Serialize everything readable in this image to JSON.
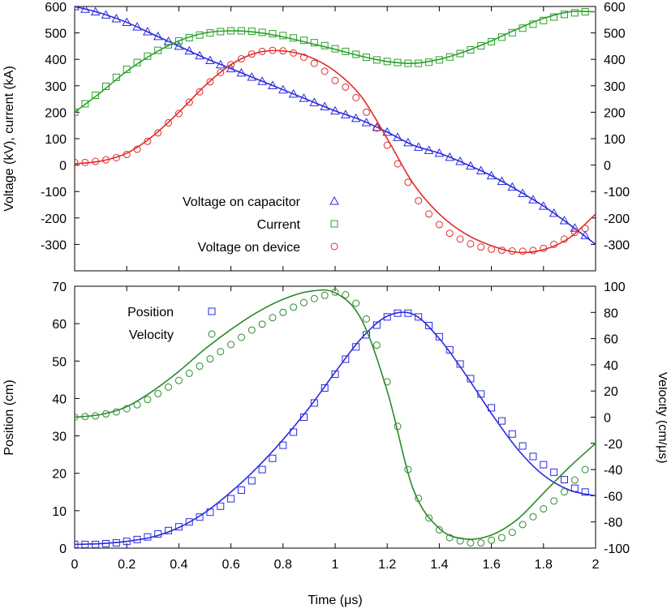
{
  "chart_data": [
    {
      "type": "line",
      "xlabel": "",
      "ylabel": "Voltage (kV), current (kA)",
      "xlim": [
        0,
        2
      ],
      "ylim": [
        -400,
        600
      ],
      "y2lim": [
        -400,
        600
      ],
      "yticks": [
        600,
        500,
        400,
        300,
        200,
        100,
        0,
        -100,
        -200,
        -300
      ],
      "y2ticks": [
        600,
        500,
        400,
        300,
        200,
        100,
        0,
        -100,
        -200,
        -300
      ],
      "xticks": [
        0,
        0.2,
        0.4,
        0.6,
        0.8,
        1,
        1.2,
        1.4,
        1.6,
        1.8,
        2
      ],
      "grid": false,
      "legend_position": "lower-left",
      "series": [
        {
          "name": "Voltage on capacitor",
          "marker": "triangle",
          "color": "#2a2adf",
          "line_x": [
            0,
            0.1,
            0.2,
            0.3,
            0.4,
            0.5,
            0.6,
            0.7,
            0.8,
            0.9,
            1.0,
            1.1,
            1.2,
            1.3,
            1.4,
            1.5,
            1.6,
            1.7,
            1.8,
            1.9,
            2.0
          ],
          "line_y": [
            600,
            575,
            540,
            495,
            450,
            405,
            365,
            325,
            285,
            245,
            205,
            170,
            125,
            75,
            45,
            5,
            -40,
            -95,
            -155,
            -225,
            -300
          ],
          "points_x": [
            0,
            0.04,
            0.08,
            0.12,
            0.16,
            0.2,
            0.24,
            0.28,
            0.32,
            0.36,
            0.4,
            0.44,
            0.48,
            0.52,
            0.56,
            0.6,
            0.64,
            0.68,
            0.72,
            0.76,
            0.8,
            0.84,
            0.88,
            0.92,
            0.96,
            1.0,
            1.04,
            1.08,
            1.12,
            1.16,
            1.2,
            1.24,
            1.28,
            1.32,
            1.36,
            1.4,
            1.44,
            1.48,
            1.52,
            1.56,
            1.6,
            1.64,
            1.68,
            1.72,
            1.76,
            1.8,
            1.84,
            1.88,
            1.92,
            1.96
          ],
          "points_y": [
            600,
            590,
            580,
            568,
            554,
            540,
            523,
            505,
            487,
            468,
            450,
            432,
            414,
            396,
            380,
            365,
            349,
            333,
            317,
            301,
            285,
            269,
            253,
            237,
            221,
            205,
            191,
            177,
            161,
            143,
            125,
            105,
            85,
            68,
            56,
            45,
            30,
            14,
            -3,
            -21,
            -40,
            -61,
            -83,
            -107,
            -131,
            -155,
            -182,
            -210,
            -238,
            -266
          ]
        },
        {
          "name": "Current",
          "marker": "square",
          "color": "#2aa02a",
          "line_x": [
            0,
            0.1,
            0.2,
            0.3,
            0.4,
            0.5,
            0.6,
            0.7,
            0.8,
            0.9,
            1.0,
            1.1,
            1.2,
            1.3,
            1.4,
            1.5,
            1.6,
            1.7,
            1.8,
            1.9,
            2.0
          ],
          "line_y": [
            200,
            275,
            355,
            420,
            470,
            500,
            508,
            502,
            485,
            462,
            438,
            412,
            392,
            385,
            400,
            430,
            470,
            515,
            555,
            580,
            580
          ],
          "points_x": [
            0,
            0.04,
            0.08,
            0.12,
            0.16,
            0.2,
            0.24,
            0.28,
            0.32,
            0.36,
            0.4,
            0.44,
            0.48,
            0.52,
            0.56,
            0.6,
            0.64,
            0.68,
            0.72,
            0.76,
            0.8,
            0.84,
            0.88,
            0.92,
            0.96,
            1.0,
            1.04,
            1.08,
            1.12,
            1.16,
            1.2,
            1.24,
            1.28,
            1.32,
            1.36,
            1.4,
            1.44,
            1.48,
            1.52,
            1.56,
            1.6,
            1.64,
            1.68,
            1.72,
            1.76,
            1.8,
            1.84,
            1.88,
            1.92,
            1.96
          ],
          "points_y": [
            200,
            232,
            264,
            298,
            332,
            362,
            388,
            412,
            434,
            455,
            470,
            482,
            492,
            500,
            505,
            508,
            508,
            506,
            502,
            497,
            490,
            481,
            472,
            463,
            452,
            440,
            430,
            419,
            408,
            398,
            392,
            388,
            385,
            385,
            389,
            398,
            409,
            422,
            436,
            451,
            467,
            484,
            501,
            518,
            533,
            547,
            560,
            570,
            576,
            580
          ]
        },
        {
          "name": "Voltage on device",
          "marker": "circle",
          "color": "#e02a2a",
          "line_x": [
            0,
            0.1,
            0.2,
            0.3,
            0.4,
            0.5,
            0.6,
            0.7,
            0.8,
            0.9,
            1.0,
            1.1,
            1.2,
            1.3,
            1.4,
            1.5,
            1.6,
            1.7,
            1.8,
            1.9,
            2.0
          ],
          "line_y": [
            5,
            15,
            45,
            110,
            200,
            300,
            380,
            425,
            432,
            410,
            355,
            260,
            100,
            -70,
            -185,
            -260,
            -305,
            -330,
            -320,
            -275,
            -185
          ],
          "points_x": [
            0,
            0.04,
            0.08,
            0.12,
            0.16,
            0.2,
            0.24,
            0.28,
            0.32,
            0.36,
            0.4,
            0.44,
            0.48,
            0.52,
            0.56,
            0.6,
            0.64,
            0.68,
            0.72,
            0.76,
            0.8,
            0.84,
            0.88,
            0.92,
            0.96,
            1.0,
            1.04,
            1.08,
            1.12,
            1.16,
            1.2,
            1.24,
            1.28,
            1.32,
            1.36,
            1.4,
            1.44,
            1.48,
            1.52,
            1.56,
            1.6,
            1.64,
            1.68,
            1.72,
            1.76,
            1.8,
            1.84,
            1.88,
            1.92,
            1.96
          ],
          "points_y": [
            10,
            10,
            14,
            20,
            28,
            40,
            60,
            90,
            122,
            160,
            195,
            238,
            277,
            315,
            350,
            380,
            402,
            420,
            430,
            434,
            432,
            424,
            408,
            385,
            355,
            320,
            295,
            255,
            200,
            140,
            75,
            5,
            -65,
            -135,
            -185,
            -225,
            -258,
            -280,
            -298,
            -310,
            -318,
            -322,
            -325,
            -326,
            -323,
            -315,
            -300,
            -280,
            -255,
            -240
          ]
        }
      ]
    },
    {
      "type": "line",
      "xlabel": "Time (μs)",
      "ylabel": "Position (cm)",
      "y2label": "Velocity (cm/μs)",
      "xlim": [
        0,
        2
      ],
      "ylim": [
        0,
        70
      ],
      "y2lim": [
        -100,
        100
      ],
      "yticks": [
        70,
        60,
        50,
        40,
        30,
        20,
        10,
        0
      ],
      "y2ticks": [
        100,
        80,
        60,
        40,
        20,
        0,
        -20,
        -40,
        -60,
        -80,
        -100
      ],
      "xticks": [
        0,
        0.2,
        0.4,
        0.6,
        0.8,
        1,
        1.2,
        1.4,
        1.6,
        1.8,
        2
      ],
      "xticklabels": [
        "0",
        "0.2",
        "0.4",
        "0.6",
        "0.8",
        "1",
        "1.2",
        "1.4",
        "1.6",
        "1.8",
        "2"
      ],
      "grid": false,
      "legend_position": "top-left",
      "series": [
        {
          "name": "Position",
          "marker": "square",
          "color": "#2a2adf",
          "axis": "left",
          "line_x": [
            0,
            0.1,
            0.2,
            0.3,
            0.4,
            0.5,
            0.6,
            0.7,
            0.8,
            0.9,
            1.0,
            1.1,
            1.2,
            1.3,
            1.4,
            1.5,
            1.6,
            1.7,
            1.8,
            1.9,
            2.0
          ],
          "line_y": [
            1,
            1.2,
            1.8,
            3,
            5.5,
            9.5,
            15,
            21.5,
            29,
            37.5,
            47,
            56,
            62,
            62.5,
            56,
            46.5,
            36,
            26.5,
            19.5,
            15.5,
            14
          ],
          "points_x": [
            0,
            0.04,
            0.08,
            0.12,
            0.16,
            0.2,
            0.24,
            0.28,
            0.32,
            0.36,
            0.4,
            0.44,
            0.48,
            0.52,
            0.56,
            0.6,
            0.64,
            0.68,
            0.72,
            0.76,
            0.8,
            0.84,
            0.88,
            0.92,
            0.96,
            1.0,
            1.04,
            1.08,
            1.12,
            1.16,
            1.2,
            1.24,
            1.28,
            1.32,
            1.36,
            1.4,
            1.44,
            1.48,
            1.52,
            1.56,
            1.6,
            1.64,
            1.68,
            1.72,
            1.76,
            1.8,
            1.84,
            1.88,
            1.92,
            1.96
          ],
          "points_y": [
            1,
            1,
            1,
            1.2,
            1.4,
            1.8,
            2.3,
            3,
            3.8,
            4.7,
            5.7,
            7,
            8.3,
            9.6,
            11.2,
            13.2,
            15.5,
            18,
            21,
            24,
            27.5,
            31,
            35,
            38.8,
            42.8,
            46.5,
            50.5,
            53.8,
            57,
            59.6,
            61.8,
            62.8,
            62.8,
            61.8,
            59.5,
            56.5,
            53,
            49.2,
            45.3,
            41.2,
            37.5,
            34,
            30.5,
            27.3,
            24.5,
            22.3,
            20.3,
            18.3,
            16,
            15
          ]
        },
        {
          "name": "Velocity",
          "marker": "circle",
          "color": "#2a8a2a",
          "axis": "right",
          "line_x": [
            0,
            0.1,
            0.2,
            0.3,
            0.4,
            0.5,
            0.6,
            0.7,
            0.8,
            0.9,
            1.0,
            1.1,
            1.2,
            1.3,
            1.4,
            1.5,
            1.6,
            1.7,
            1.8,
            1.9,
            2.0
          ],
          "line_y": [
            0,
            2,
            8,
            20,
            35,
            52,
            67,
            80,
            90,
            96,
            95,
            75,
            20,
            -55,
            -85,
            -93,
            -90,
            -78,
            -58,
            -38,
            -20
          ],
          "points_x": [
            0,
            0.04,
            0.08,
            0.12,
            0.16,
            0.2,
            0.24,
            0.28,
            0.32,
            0.36,
            0.4,
            0.44,
            0.48,
            0.52,
            0.56,
            0.6,
            0.64,
            0.68,
            0.72,
            0.76,
            0.8,
            0.84,
            0.88,
            0.92,
            0.96,
            1.0,
            1.04,
            1.08,
            1.12,
            1.16,
            1.2,
            1.24,
            1.28,
            1.32,
            1.36,
            1.4,
            1.44,
            1.48,
            1.52,
            1.56,
            1.6,
            1.64,
            1.68,
            1.72,
            1.76,
            1.8,
            1.84,
            1.88,
            1.92,
            1.96
          ],
          "points_y": [
            0,
            0.5,
            1,
            2.5,
            4,
            6.5,
            9.5,
            13.5,
            18,
            23,
            28,
            33.5,
            39,
            44.5,
            50,
            55.5,
            61,
            66.5,
            71,
            76,
            80,
            84,
            87.5,
            90.5,
            93,
            95.5,
            93.5,
            87,
            75,
            55,
            27,
            -7,
            -40,
            -62,
            -77,
            -86,
            -92,
            -94.5,
            -96,
            -96,
            -94,
            -92,
            -88,
            -82,
            -76,
            -70,
            -64,
            -57,
            -48,
            -40
          ]
        }
      ]
    }
  ]
}
